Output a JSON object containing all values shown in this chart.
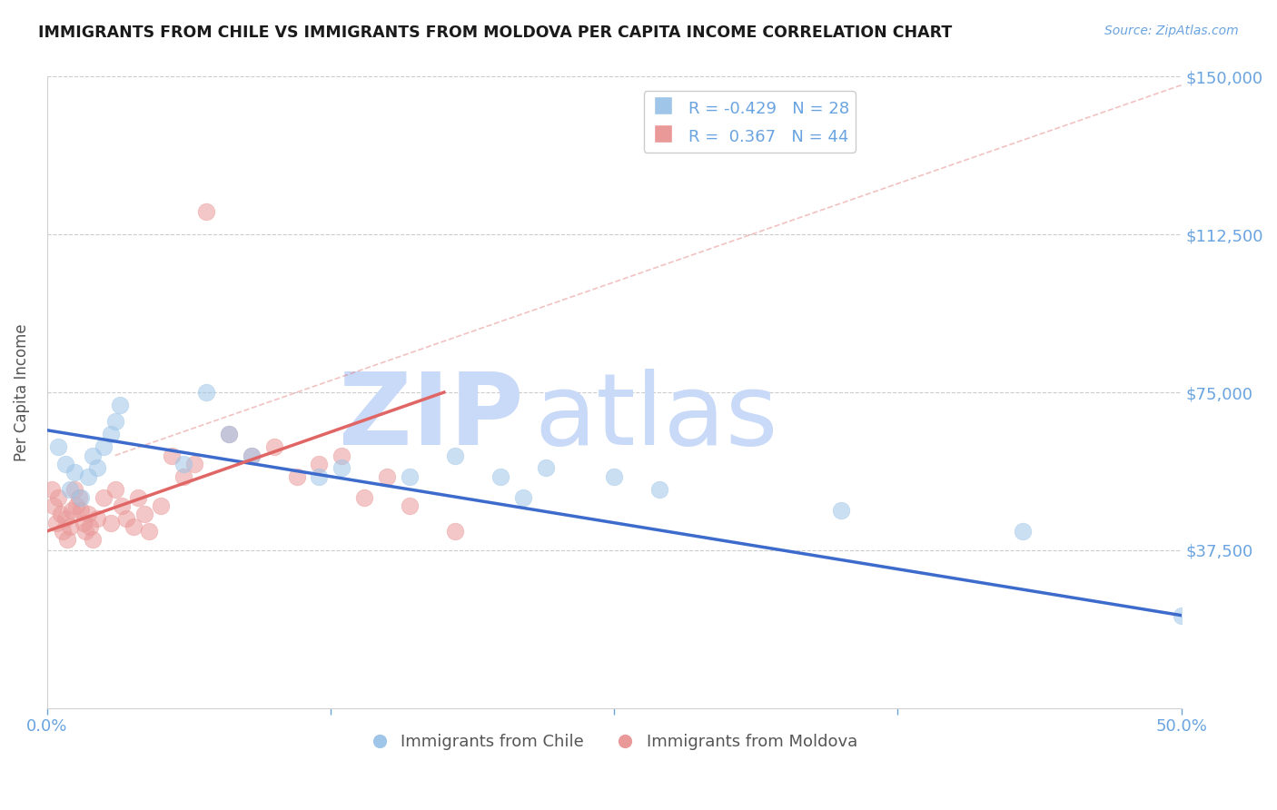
{
  "title": "IMMIGRANTS FROM CHILE VS IMMIGRANTS FROM MOLDOVA PER CAPITA INCOME CORRELATION CHART",
  "source": "Source: ZipAtlas.com",
  "ylabel": "Per Capita Income",
  "xlim": [
    0.0,
    0.5
  ],
  "ylim": [
    0,
    150000
  ],
  "yticks": [
    0,
    37500,
    75000,
    112500,
    150000
  ],
  "ytick_labels": [
    "",
    "$37,500",
    "$75,000",
    "$112,500",
    "$150,000"
  ],
  "xticks": [
    0.0,
    0.125,
    0.25,
    0.375,
    0.5
  ],
  "xtick_labels": [
    "0.0%",
    "",
    "",
    "",
    "50.0%"
  ],
  "chile_R": -0.429,
  "chile_N": 28,
  "moldova_R": 0.367,
  "moldova_N": 44,
  "chile_color": "#9fc5e8",
  "moldova_color": "#ea9999",
  "chile_line_color": "#3d6bcc",
  "moldova_line_color": "#e06666",
  "ref_line_color": "#e06666",
  "watermark_zip_color": "#c9daf8",
  "watermark_atlas_color": "#c9daf8",
  "title_color": "#1a1a1a",
  "axis_color": "#6aa4e0",
  "grid_color": "#cccccc",
  "chile_scatter_x": [
    0.005,
    0.008,
    0.01,
    0.012,
    0.015,
    0.018,
    0.02,
    0.022,
    0.025,
    0.028,
    0.03,
    0.032,
    0.06,
    0.07,
    0.08,
    0.09,
    0.12,
    0.13,
    0.16,
    0.18,
    0.2,
    0.21,
    0.22,
    0.25,
    0.27,
    0.35,
    0.43,
    0.5
  ],
  "chile_scatter_y": [
    62000,
    58000,
    52000,
    56000,
    50000,
    55000,
    60000,
    57000,
    62000,
    65000,
    68000,
    72000,
    58000,
    75000,
    65000,
    60000,
    55000,
    57000,
    55000,
    60000,
    55000,
    50000,
    57000,
    55000,
    52000,
    47000,
    42000,
    22000
  ],
  "moldova_scatter_x": [
    0.002,
    0.003,
    0.004,
    0.005,
    0.006,
    0.007,
    0.008,
    0.009,
    0.01,
    0.011,
    0.012,
    0.013,
    0.014,
    0.015,
    0.016,
    0.017,
    0.018,
    0.019,
    0.02,
    0.022,
    0.025,
    0.028,
    0.03,
    0.033,
    0.035,
    0.038,
    0.04,
    0.043,
    0.045,
    0.05,
    0.055,
    0.06,
    0.065,
    0.07,
    0.08,
    0.09,
    0.1,
    0.11,
    0.12,
    0.13,
    0.14,
    0.15,
    0.16,
    0.18
  ],
  "moldova_scatter_y": [
    52000,
    48000,
    44000,
    50000,
    46000,
    42000,
    45000,
    40000,
    43000,
    47000,
    52000,
    48000,
    50000,
    47000,
    44000,
    42000,
    46000,
    43000,
    40000,
    45000,
    50000,
    44000,
    52000,
    48000,
    45000,
    43000,
    50000,
    46000,
    42000,
    48000,
    60000,
    55000,
    58000,
    118000,
    65000,
    60000,
    62000,
    55000,
    58000,
    60000,
    50000,
    55000,
    48000,
    42000
  ],
  "chile_trend_x": [
    0.0,
    0.5
  ],
  "chile_trend_y": [
    66000,
    22000
  ],
  "moldova_trend_x": [
    0.0,
    0.175
  ],
  "moldova_trend_y": [
    42000,
    75000
  ],
  "ref_line_x": [
    0.03,
    0.5
  ],
  "ref_line_y": [
    60000,
    148000
  ]
}
